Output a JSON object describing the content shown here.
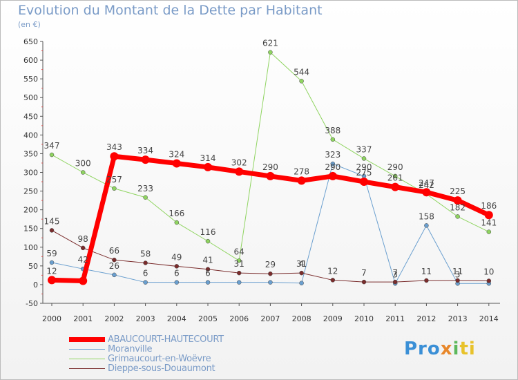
{
  "title": "Evolution du Montant de la Dette par Habitant",
  "subtitle": "(en €)",
  "logo": {
    "text": "Proxiti",
    "parts": [
      "Pro",
      "x",
      "i",
      "ti"
    ]
  },
  "chart_data": {
    "type": "line",
    "x": [
      "2000",
      "2001",
      "2002",
      "2003",
      "2004",
      "2005",
      "2006",
      "2007",
      "2008",
      "2009",
      "2010",
      "2011",
      "2012",
      "2013",
      "2014"
    ],
    "ylim": [
      -50,
      650
    ],
    "yticks": [
      -50,
      0,
      50,
      100,
      150,
      200,
      250,
      300,
      350,
      400,
      450,
      500,
      550,
      600,
      650
    ],
    "grid": false,
    "series": [
      {
        "name": "ABAUCOURT-HAUTECOURT",
        "color": "#ff0000",
        "width": 7,
        "values": [
          12,
          10,
          343,
          334,
          324,
          314,
          302,
          290,
          278,
          290,
          275,
          261,
          247,
          225,
          186
        ],
        "labels": [
          "12",
          "",
          "343",
          "334",
          "324",
          "314",
          "302",
          "290",
          "278",
          "",
          "275",
          "261",
          "247",
          "225",
          "186"
        ]
      },
      {
        "name": "Moranville",
        "color": "#6a9fcf",
        "width": 1,
        "values": [
          59,
          42,
          26,
          6,
          6,
          6,
          6,
          6,
          4,
          323,
          290,
          3,
          158,
          3,
          3
        ],
        "labels": [
          "59",
          "42",
          "26",
          "6",
          "6",
          "6",
          "",
          "",
          "",
          "323",
          "290",
          "3",
          "158",
          "3",
          ""
        ]
      },
      {
        "name": "Grimaucourt-en-Woëvre",
        "color": "#8fd460",
        "width": 1,
        "values": [
          347,
          300,
          257,
          233,
          166,
          116,
          64,
          621,
          544,
          388,
          337,
          290,
          242,
          182,
          141
        ],
        "labels": [
          "347",
          "300",
          "257",
          "233",
          "166",
          "116",
          "64",
          "621",
          "544",
          "388",
          "337",
          "290",
          "242",
          "182",
          "141"
        ]
      },
      {
        "name": "Dieppe-sous-Douaumont",
        "color": "#7a2c2c",
        "width": 1,
        "values": [
          145,
          98,
          66,
          58,
          49,
          41,
          31,
          29,
          31,
          12,
          7,
          7,
          11,
          11,
          10
        ],
        "labels": [
          "145",
          "98",
          "66",
          "58",
          "49",
          "41",
          "31",
          "29",
          "31",
          "12",
          "7",
          "7",
          "11",
          "11",
          "10"
        ]
      }
    ],
    "extra_labels": [
      {
        "series": 3,
        "index": 8,
        "text": "4"
      },
      {
        "series": 0,
        "index": 9,
        "text": "290"
      }
    ]
  },
  "legend": [
    {
      "label": "ABAUCOURT-HAUTECOURT",
      "color": "#ff0000"
    },
    {
      "label": "Moranville",
      "color": "#6a9fcf"
    },
    {
      "label": "Grimaucourt-en-Woëvre",
      "color": "#8fd460"
    },
    {
      "label": "Dieppe-sous-Douaumont",
      "color": "#7a2c2c"
    }
  ]
}
